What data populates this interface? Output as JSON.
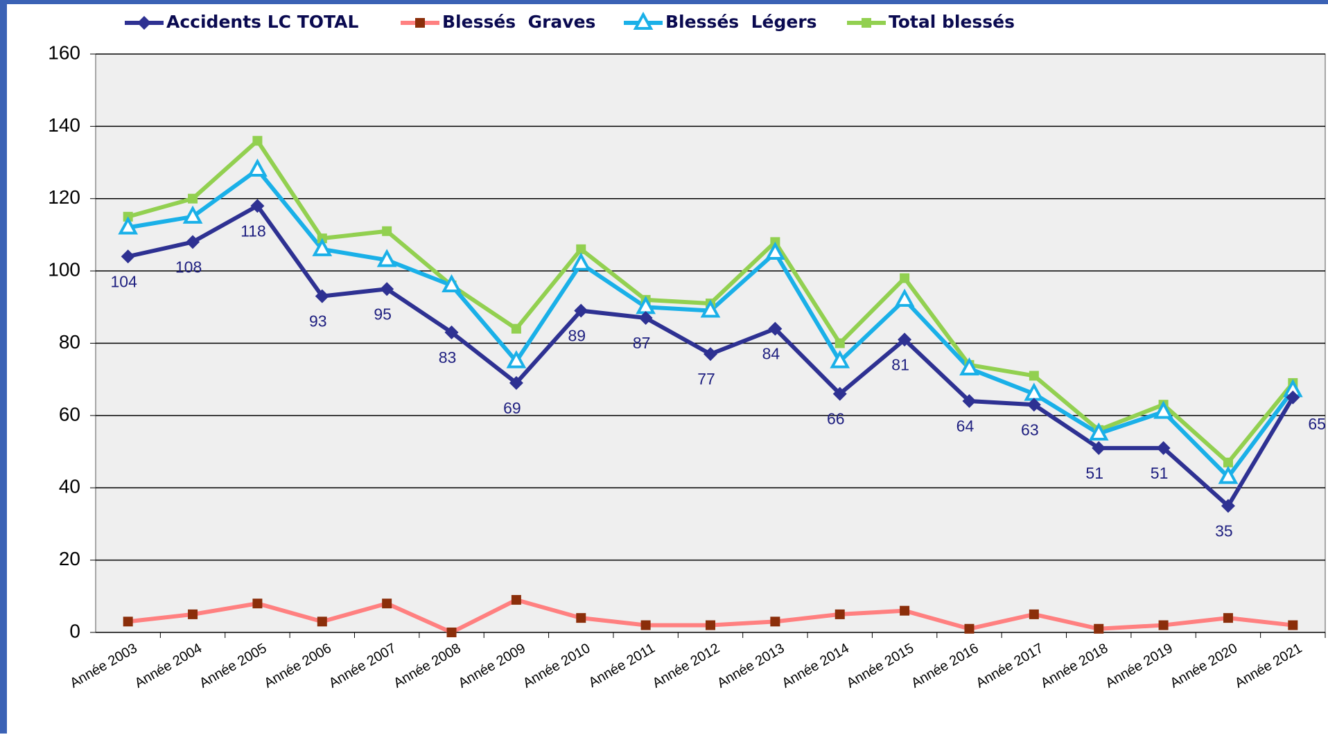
{
  "chart_data": {
    "type": "line",
    "categories": [
      "Année 2003",
      "Année 2004",
      "Année 2005",
      "Année 2006",
      "Année 2007",
      "Année 2008",
      "Année 2009",
      "Année 2010",
      "Année 2011",
      "Année 2012",
      "Année 2013",
      "Année 2014",
      "Année 2015",
      "Année 2016",
      "Année 2017",
      "Année 2018",
      "Année 2019",
      "Année 2020",
      "Année 2021"
    ],
    "series": [
      {
        "name": "Accidents LC TOTAL",
        "color": "#2e3192",
        "marker": "diamond",
        "data_labels": true,
        "values": [
          104,
          108,
          118,
          93,
          95,
          83,
          69,
          89,
          87,
          77,
          84,
          66,
          81,
          64,
          63,
          51,
          51,
          35,
          65
        ]
      },
      {
        "name": "Blessés  Graves",
        "color": "#ff8080",
        "marker_color": "#8b2e0a",
        "marker": "square",
        "values": [
          3,
          5,
          8,
          3,
          8,
          0,
          9,
          4,
          2,
          2,
          3,
          5,
          6,
          1,
          5,
          1,
          2,
          4,
          2
        ]
      },
      {
        "name": "Blessés  Légers",
        "color": "#1ab0e8",
        "marker": "triangle",
        "values": [
          112,
          115,
          128,
          106,
          103,
          96,
          75,
          102,
          90,
          89,
          105,
          75,
          92,
          73,
          66,
          55,
          61,
          43,
          67
        ]
      },
      {
        "name": "Total blessés",
        "color": "#92d050",
        "marker": "square",
        "values": [
          115,
          120,
          136,
          109,
          111,
          96,
          84,
          106,
          92,
          91,
          108,
          80,
          98,
          74,
          71,
          56,
          63,
          47,
          69
        ]
      }
    ],
    "ylim": [
      0,
      160
    ],
    "yticks": [
      0,
      20,
      40,
      60,
      80,
      100,
      120,
      140,
      160
    ],
    "grid": true,
    "legend": "top"
  }
}
